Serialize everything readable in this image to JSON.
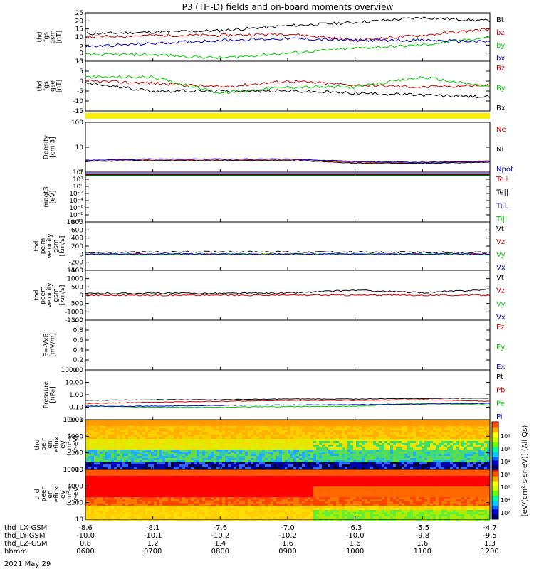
{
  "title": "P3 (TH-D) fields and on-board moments overview",
  "date": "2021 May 29",
  "colors": {
    "black": "#000000",
    "red": "#cc0000",
    "green": "#00cc00",
    "blue": "#0000cc",
    "yellow": "#ffee00"
  },
  "panels": [
    {
      "id": "fgs",
      "ylabel": [
        "thd",
        "fgs",
        "gsm",
        "[nT]"
      ],
      "ylim": [
        -5,
        25
      ],
      "ticks": [
        "-5",
        "0",
        "5",
        "10",
        "15",
        "20",
        "25"
      ],
      "scale": "linear",
      "legend": [
        {
          "text": "Bt",
          "color": "black"
        },
        {
          "text": "bz",
          "color": "red"
        },
        {
          "text": "by",
          "color": "green"
        },
        {
          "text": "bx",
          "color": "blue"
        }
      ]
    },
    {
      "id": "fgs_gse",
      "ylabel": [
        "thd",
        "fgs",
        "gse",
        "[nT]"
      ],
      "ylim": [
        -15,
        10
      ],
      "ticks": [
        "-15",
        "-10",
        "-5",
        "0",
        "5",
        "10"
      ],
      "scale": "linear",
      "legend": [
        {
          "text": "Bz",
          "color": "red"
        },
        {
          "text": "By",
          "color": "green"
        },
        {
          "text": "Bx",
          "color": "black"
        }
      ]
    },
    {
      "id": "density",
      "ylabel": [
        "Density",
        "[cm-3]"
      ],
      "ylim": [
        0.1,
        200
      ],
      "ticks": [
        "1",
        "10",
        "100"
      ],
      "scale": "log",
      "legend": [
        {
          "text": "Ne",
          "color": "red"
        },
        {
          "text": "Ni",
          "color": "black"
        },
        {
          "text": "Npot",
          "color": "blue"
        }
      ]
    },
    {
      "id": "temp",
      "ylabel": [
        "magt3",
        "[eV]"
      ],
      "ylim": [
        1e-10,
        10000.0
      ],
      "ticks": [
        "10⁻¹⁰",
        "10⁻⁸",
        "10⁻⁶",
        "10⁻⁴",
        "10⁻²",
        "10⁰",
        "10²",
        "10⁴"
      ],
      "scale": "log",
      "legend": [
        {
          "text": "Te⊥",
          "color": "red"
        },
        {
          "text": "Te||",
          "color": "black"
        },
        {
          "text": "Ti⊥",
          "color": "blue"
        },
        {
          "text": "Ti||",
          "color": "green"
        }
      ]
    },
    {
      "id": "peim",
      "ylabel": [
        "thd",
        "peim",
        "velocity",
        "gsm",
        "[km/s]"
      ],
      "ylim": [
        -400,
        800
      ],
      "ticks": [
        "-400",
        "-200",
        "0",
        "200",
        "400",
        "600",
        "800"
      ],
      "scale": "linear",
      "legend": [
        {
          "text": "Vt",
          "color": "black"
        },
        {
          "text": "Vz",
          "color": "red"
        },
        {
          "text": "Vy",
          "color": "green"
        },
        {
          "text": "Vx",
          "color": "blue"
        }
      ]
    },
    {
      "id": "peem",
      "ylabel": [
        "thd",
        "peem",
        "velocity",
        "gsm",
        "[km/s]"
      ],
      "ylim": [
        -1500,
        1500
      ],
      "ticks": [
        "-1500",
        "-1000",
        "-500",
        "0",
        "500",
        "1000",
        "1500"
      ],
      "scale": "linear",
      "legend": [
        {
          "text": "Vt",
          "color": "black"
        },
        {
          "text": "Vz",
          "color": "red"
        },
        {
          "text": "Vy",
          "color": "green"
        },
        {
          "text": "Vx",
          "color": "blue"
        }
      ]
    },
    {
      "id": "efield",
      "ylabel": [
        "E=-VxB",
        "[mV/m]"
      ],
      "ylim": [
        0,
        1
      ],
      "ticks": [
        "0.0",
        "0.2",
        "0.4",
        "0.6",
        "0.8",
        "1.0"
      ],
      "scale": "linear",
      "legend": [
        {
          "text": "Ez",
          "color": "red"
        },
        {
          "text": "Ey",
          "color": "green"
        },
        {
          "text": "Ex",
          "color": "blue"
        }
      ]
    },
    {
      "id": "pressure",
      "ylabel": [
        "Pressure",
        "[nPa]"
      ],
      "ylim": [
        0.01,
        100
      ],
      "ticks": [
        "0.01",
        "0.10",
        "1.00",
        "10.00",
        "100.00"
      ],
      "scale": "log",
      "legend": [
        {
          "text": "Pt",
          "color": "black"
        },
        {
          "text": "Pb",
          "color": "red"
        },
        {
          "text": "Pe",
          "color": "green"
        },
        {
          "text": "Pi",
          "color": "blue"
        }
      ]
    },
    {
      "id": "peir",
      "ylabel": [
        "thd",
        "peir",
        "en",
        "eflux",
        "eV",
        "(cm²-s-",
        "sr-eV)"
      ],
      "ylim": [
        5,
        20000
      ],
      "ticks": [
        "10",
        "100",
        "1000",
        "10000"
      ],
      "scale": "log",
      "legend": []
    },
    {
      "id": "peer",
      "ylabel": [
        "thd",
        "peer",
        "en",
        "eflux",
        "eV",
        "(cm²-s-",
        "sr-eV)"
      ],
      "ylim": [
        5,
        20000
      ],
      "ticks": [
        "10",
        "100",
        "1000",
        "10000"
      ],
      "scale": "log",
      "legend": []
    }
  ],
  "colorbar": {
    "label": "[eV/(cm²-s-sr-eV)] (All Qs)",
    "ticks": [
      "10²",
      "10⁴",
      "10⁶",
      "10⁸",
      "10⁴",
      "10⁶",
      "10⁸"
    ]
  },
  "x_axis": {
    "rows": [
      {
        "name": "thd_LX-GSM",
        "values": [
          "-8.6",
          "-8.1",
          "-7.6",
          "-7.0",
          "-6.3",
          "-5.5",
          "-4.7"
        ]
      },
      {
        "name": "thd_LY-GSM",
        "values": [
          "-10.0",
          "-10.1",
          "-10.2",
          "-10.2",
          "-10.0",
          "-9.8",
          "-9.5"
        ]
      },
      {
        "name": "thd_LZ-GSM",
        "values": [
          "0.8",
          "1.2",
          "1.4",
          "1.6",
          "1.6",
          "1.6",
          "1.3"
        ]
      },
      {
        "name": "hhmm",
        "values": [
          "0600",
          "0700",
          "0800",
          "0900",
          "1000",
          "1100",
          "1200"
        ]
      }
    ]
  },
  "chart_data": [
    {
      "type": "line",
      "panel": "fgs",
      "x": [
        "0600",
        "0700",
        "0800",
        "0900",
        "1000",
        "1100",
        "1200"
      ],
      "ylabel": "thd fgs gsm [nT]",
      "ylim": [
        -5,
        25
      ],
      "series": [
        {
          "name": "Bt",
          "values": [
            12,
            13,
            14,
            17,
            19,
            22,
            20
          ]
        },
        {
          "name": "bz",
          "values": [
            10,
            11,
            11,
            12,
            8,
            11,
            15
          ]
        },
        {
          "name": "by",
          "values": [
            -1,
            -1,
            -3,
            0,
            3,
            5,
            10
          ]
        },
        {
          "name": "bx",
          "values": [
            4,
            6,
            8,
            9,
            8,
            8,
            7
          ]
        }
      ]
    },
    {
      "type": "line",
      "panel": "fgs_gse",
      "x": [
        "0600",
        "0700",
        "0800",
        "0900",
        "1000",
        "1100",
        "1200"
      ],
      "ylim": [
        -15,
        10
      ],
      "series": [
        {
          "name": "Bz",
          "values": [
            0,
            -1,
            -3,
            0,
            -2,
            -3,
            -2
          ]
        },
        {
          "name": "By",
          "values": [
            2,
            2,
            -6,
            -3,
            -3,
            2,
            -3
          ]
        },
        {
          "name": "Bx",
          "values": [
            -1,
            -5,
            -5,
            -5,
            -6,
            -7,
            -8
          ]
        }
      ]
    },
    {
      "type": "line",
      "panel": "density",
      "x": [
        "0600",
        "0700",
        "0800",
        "0900",
        "1000",
        "1100",
        "1200"
      ],
      "ylim": [
        0.1,
        200
      ],
      "scale": "log",
      "series": [
        {
          "name": "Ne",
          "values": [
            0.6,
            0.7,
            0.7,
            0.7,
            0.45,
            0.45,
            0.55
          ]
        },
        {
          "name": "Ni",
          "values": [
            0.5,
            0.6,
            0.6,
            0.6,
            0.4,
            0.38,
            0.45
          ]
        },
        {
          "name": "Npot",
          "values": [
            0.6,
            0.75,
            0.75,
            0.75,
            0.5,
            0.45,
            0.5
          ]
        }
      ]
    },
    {
      "type": "line",
      "panel": "peim",
      "x": [
        "0600",
        "0700",
        "0800",
        "0900",
        "1000",
        "1100",
        "1200"
      ],
      "ylim": [
        -400,
        800
      ],
      "series": [
        {
          "name": "Vt",
          "values": [
            40,
            50,
            60,
            55,
            50,
            45,
            40
          ]
        },
        {
          "name": "Vz",
          "values": [
            0,
            0,
            0,
            0,
            0,
            0,
            0
          ]
        },
        {
          "name": "Vy",
          "values": [
            0,
            -10,
            0,
            0,
            0,
            0,
            0
          ]
        },
        {
          "name": "Vx",
          "values": [
            0,
            0,
            0,
            0,
            0,
            0,
            0
          ]
        }
      ]
    },
    {
      "type": "line",
      "panel": "peem",
      "x": [
        "0600",
        "0700",
        "0800",
        "0900",
        "1000",
        "1100",
        "1200"
      ],
      "ylim": [
        -1500,
        1500
      ],
      "series": [
        {
          "name": "Vt",
          "values": [
            100,
            120,
            110,
            130,
            300,
            150,
            350
          ]
        },
        {
          "name": "Vz",
          "values": [
            0,
            0,
            0,
            0,
            0,
            0,
            0
          ]
        }
      ]
    },
    {
      "type": "line",
      "panel": "pressure",
      "x": [
        "0600",
        "0700",
        "0800",
        "0900",
        "1000",
        "1100",
        "1200"
      ],
      "ylim": [
        0.01,
        100
      ],
      "scale": "log",
      "series": [
        {
          "name": "Pt",
          "values": [
            0.35,
            0.4,
            0.4,
            0.45,
            0.45,
            0.5,
            0.55
          ]
        },
        {
          "name": "Pb",
          "values": [
            0.2,
            0.25,
            0.3,
            0.35,
            0.35,
            0.4,
            0.3
          ]
        },
        {
          "name": "Pe",
          "values": [
            0.12,
            0.1,
            0.1,
            0.11,
            0.12,
            0.2,
            0.15
          ]
        },
        {
          "name": "Pi",
          "values": [
            0.12,
            0.12,
            0.14,
            0.15,
            0.16,
            0.18,
            0.2
          ]
        }
      ]
    },
    {
      "type": "heatmap",
      "panel": "peir",
      "x": [
        "0600",
        "0700",
        "0800",
        "0900",
        "1000",
        "1100",
        "1200"
      ],
      "ylim": [
        10,
        10000
      ],
      "scale": "log"
    },
    {
      "type": "heatmap",
      "panel": "peer",
      "x": [
        "0600",
        "0700",
        "0800",
        "0900",
        "1000",
        "1100",
        "1200"
      ],
      "ylim": [
        10,
        10000
      ],
      "scale": "log"
    }
  ]
}
